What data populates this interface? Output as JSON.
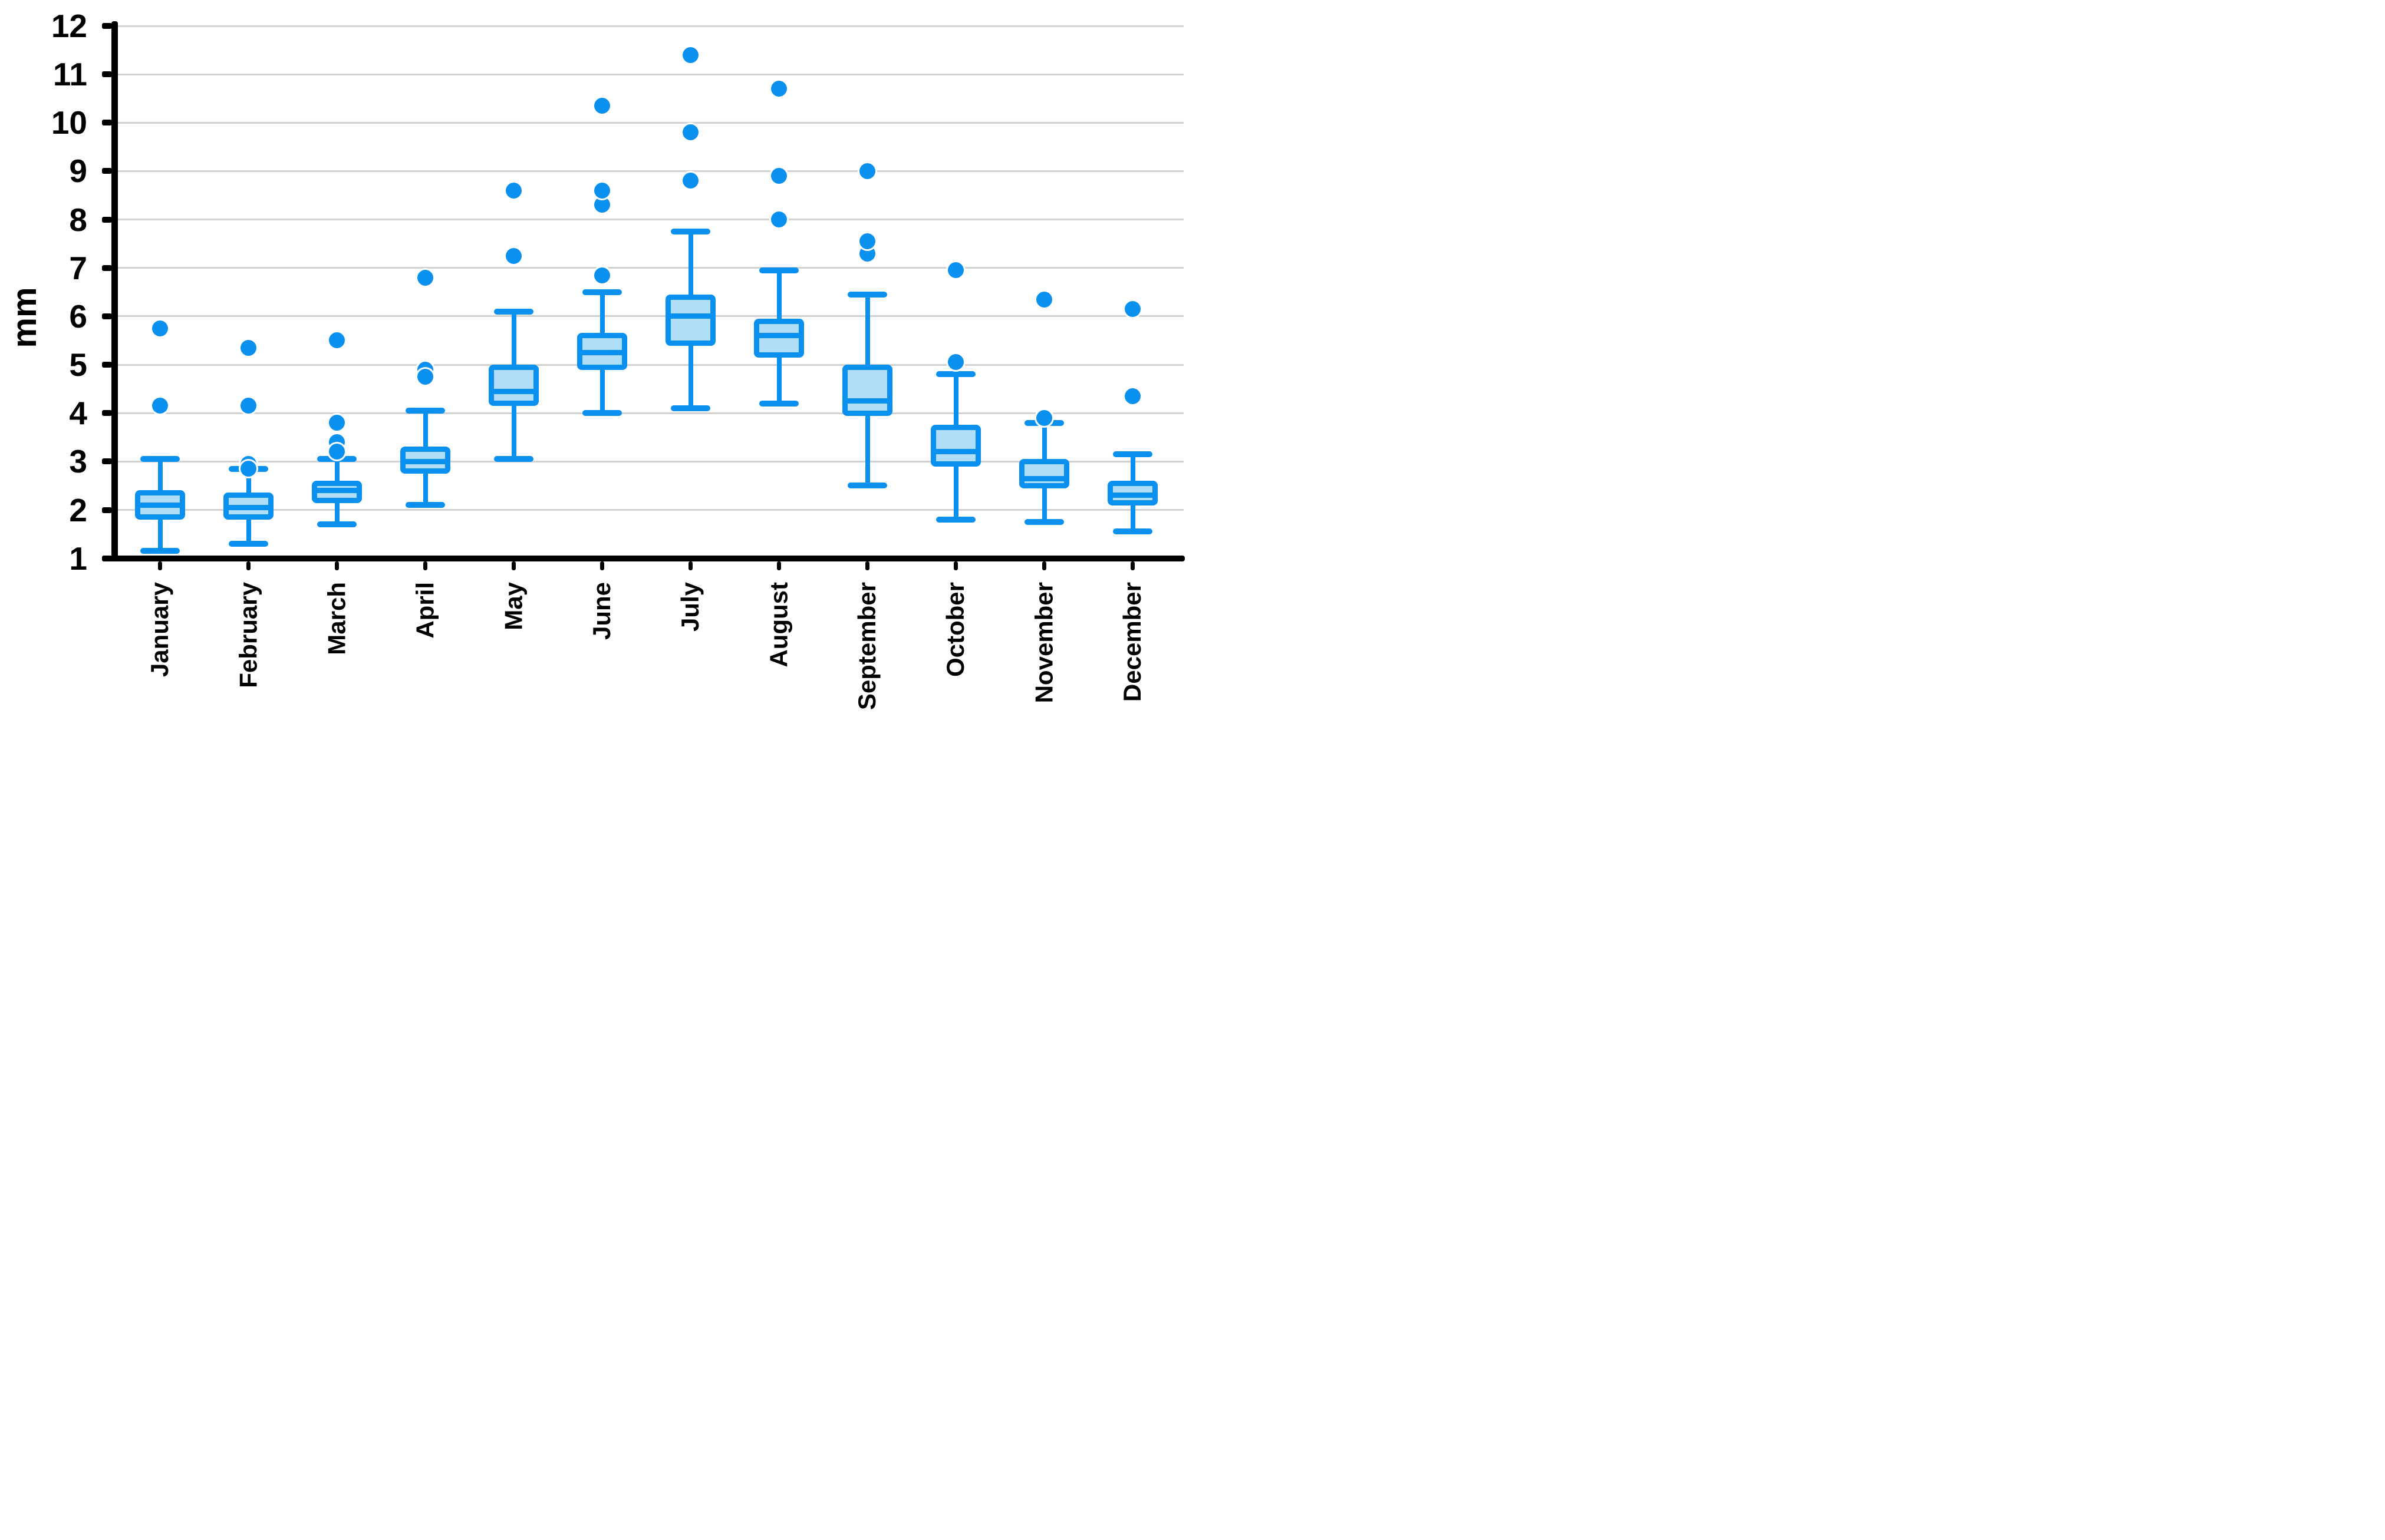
{
  "chart_data": {
    "type": "box",
    "title": "",
    "ylabel": "mm",
    "xlabel": "",
    "ylim": [
      1,
      12
    ],
    "yticks": [
      1,
      2,
      3,
      4,
      5,
      6,
      7,
      8,
      9,
      10,
      11,
      12
    ],
    "grid": "horizontal",
    "legend": "none",
    "categories": [
      "January",
      "February",
      "March",
      "April",
      "May",
      "June",
      "July",
      "August",
      "September",
      "October",
      "November",
      "December"
    ],
    "series": [
      {
        "name": "January",
        "whisker_low": 1.15,
        "q1": 1.85,
        "median": 2.1,
        "q3": 2.35,
        "whisker_high": 3.05,
        "outliers": [
          4.15,
          5.75
        ]
      },
      {
        "name": "February",
        "whisker_low": 1.3,
        "q1": 1.85,
        "median": 2.05,
        "q3": 2.3,
        "whisker_high": 2.85,
        "outliers": [
          2.95,
          2.85,
          4.15,
          5.35
        ]
      },
      {
        "name": "March",
        "whisker_low": 1.7,
        "q1": 2.2,
        "median": 2.4,
        "q3": 2.55,
        "whisker_high": 3.05,
        "outliers": [
          3.4,
          3.2,
          3.8,
          5.5
        ]
      },
      {
        "name": "April",
        "whisker_low": 2.1,
        "q1": 2.8,
        "median": 3.0,
        "q3": 3.25,
        "whisker_high": 4.05,
        "outliers": [
          4.9,
          4.75,
          6.8
        ]
      },
      {
        "name": "May",
        "whisker_low": 3.05,
        "q1": 4.2,
        "median": 4.45,
        "q3": 4.95,
        "whisker_high": 6.1,
        "outliers": [
          7.25,
          8.6
        ]
      },
      {
        "name": "June",
        "whisker_low": 4.0,
        "q1": 4.95,
        "median": 5.25,
        "q3": 5.6,
        "whisker_high": 6.5,
        "outliers": [
          6.85,
          8.3,
          8.6,
          10.35
        ]
      },
      {
        "name": "July",
        "whisker_low": 4.1,
        "q1": 5.45,
        "median": 6.0,
        "q3": 6.4,
        "whisker_high": 7.75,
        "outliers": [
          8.8,
          9.8,
          11.4
        ]
      },
      {
        "name": "August",
        "whisker_low": 4.2,
        "q1": 5.2,
        "median": 5.6,
        "q3": 5.9,
        "whisker_high": 6.95,
        "outliers": [
          8.0,
          8.9,
          10.7
        ]
      },
      {
        "name": "September",
        "whisker_low": 2.5,
        "q1": 4.0,
        "median": 4.25,
        "q3": 4.95,
        "whisker_high": 6.45,
        "outliers": [
          7.3,
          7.55,
          9.0
        ]
      },
      {
        "name": "October",
        "whisker_low": 1.8,
        "q1": 2.95,
        "median": 3.2,
        "q3": 3.7,
        "whisker_high": 4.8,
        "outliers": [
          5.05,
          6.95
        ]
      },
      {
        "name": "November",
        "whisker_low": 1.75,
        "q1": 2.5,
        "median": 2.65,
        "q3": 3.0,
        "whisker_high": 3.8,
        "outliers": [
          3.9,
          6.35
        ]
      },
      {
        "name": "December",
        "whisker_low": 1.55,
        "q1": 2.15,
        "median": 2.3,
        "q3": 2.55,
        "whisker_high": 3.15,
        "outliers": [
          4.35,
          6.15
        ]
      }
    ]
  },
  "colors": {
    "box_stroke": "#0a91f0",
    "box_fill": "#b0ddf8",
    "gridline": "#d2d2d2",
    "axis": "#000000",
    "background": "#ffffff"
  }
}
